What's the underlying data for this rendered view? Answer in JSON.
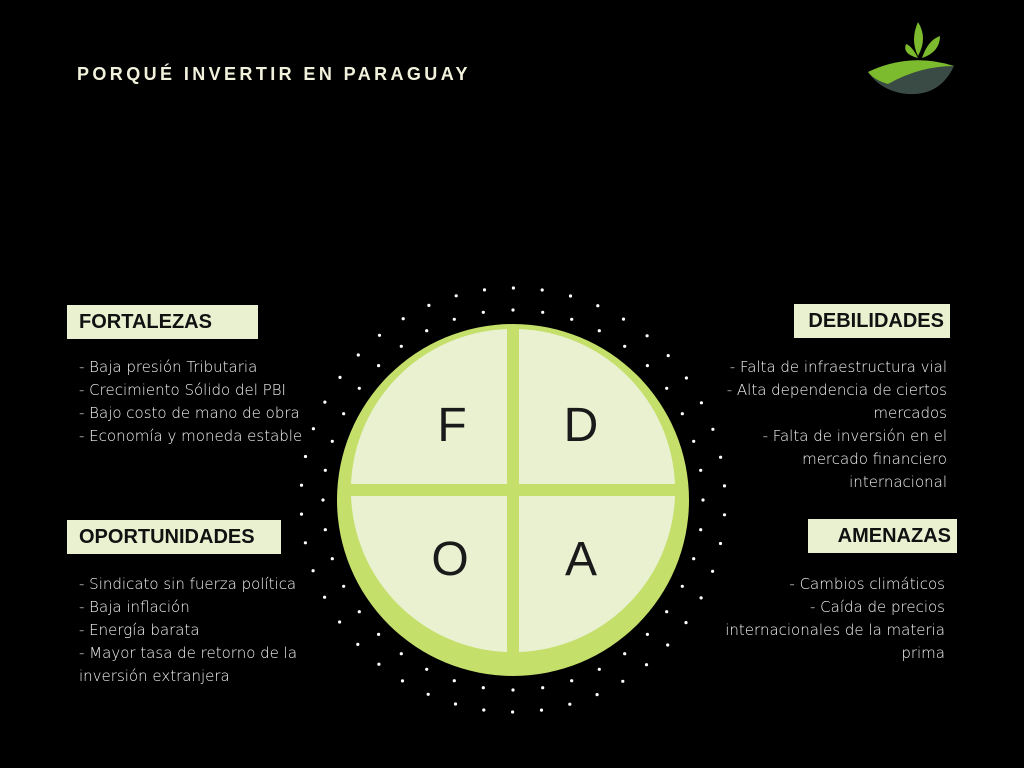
{
  "title": "PORQUÉ INVERTIR EN PARAGUAY",
  "colors": {
    "background": "#000000",
    "ring": "#c4df6a",
    "quadrant_fill": "#e9f1d1",
    "label_box": "#e9f1d1",
    "logo_leaf": "#7dbb2e",
    "logo_dark": "#3a4a45"
  },
  "logo": {
    "icon": "leaf-sprout-logo-icon"
  },
  "swot": {
    "letters": {
      "f": "F",
      "d": "D",
      "o": "O",
      "a": "A"
    },
    "fortalezas": {
      "label": "FORTALEZAS",
      "items": [
        "- Baja presión Tributaria",
        "- Crecimiento Sólido del PBI",
        "- Bajo costo de mano de obra",
        "- Economía y moneda estable"
      ]
    },
    "debilidades": {
      "label": "DEBILIDADES",
      "items": [
        "- Falta de infraestructura vial",
        "- Alta dependencia de ciertos",
        "mercados",
        "- Falta de inversión en el",
        "mercado financiero",
        "internacional"
      ]
    },
    "oportunidades": {
      "label": "OPORTUNIDADES",
      "items": [
        "- Sindicato sin fuerza política",
        "- Baja inflación",
        "- Energía barata",
        "- Mayor tasa de retorno de la",
        "inversión extranjera"
      ]
    },
    "amenazas": {
      "label": "AMENAZAS",
      "items": [
        "- Cambios climáticos",
        "- Caída de precios",
        "internacionales de la materia",
        "prima"
      ]
    }
  }
}
